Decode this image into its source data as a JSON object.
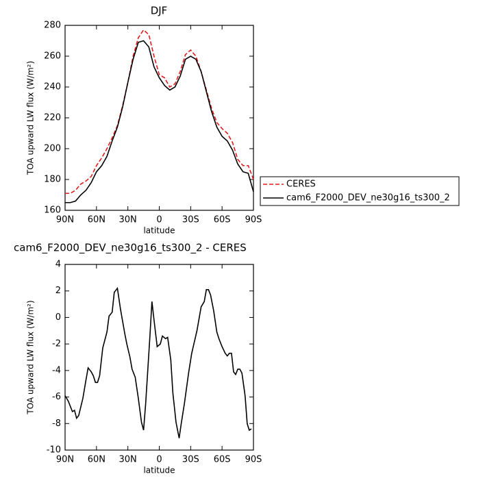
{
  "chart_data": [
    {
      "type": "line",
      "title": "DJF",
      "xlabel": "latitude",
      "ylabel": "TOA upward LW flux (W/m²)",
      "x": [
        90,
        85,
        80,
        75,
        70,
        65,
        60,
        55,
        50,
        45,
        40,
        35,
        30,
        25,
        20,
        15,
        10,
        5,
        0,
        -5,
        -10,
        -15,
        -20,
        -25,
        -30,
        -35,
        -40,
        -45,
        -50,
        -55,
        -60,
        -65,
        -70,
        -75,
        -80,
        -85,
        -90
      ],
      "series": [
        {
          "name": "CERES",
          "color": "#e41a1c",
          "style": "dashed",
          "values": [
            171,
            171,
            173,
            177,
            179,
            182,
            189,
            194,
            200,
            207,
            215,
            228,
            243,
            260,
            272,
            277,
            274,
            260,
            248,
            246,
            240,
            242,
            250,
            261,
            264,
            260,
            250,
            238,
            226,
            217,
            213,
            210,
            204,
            193,
            189,
            189,
            180
          ]
        },
        {
          "name": "cam6_F2000_DEV_ne30g16_ts300_2",
          "color": "#000000",
          "style": "solid",
          "values": [
            165,
            165,
            166,
            170,
            173,
            178,
            185,
            189,
            195,
            205,
            214,
            227,
            243,
            258,
            269,
            270,
            266,
            253,
            246,
            241,
            238,
            240,
            247,
            258,
            260,
            258,
            250,
            237,
            224,
            214,
            208,
            205,
            199,
            190,
            185,
            184,
            172
          ]
        }
      ],
      "xlim": [
        90,
        -90
      ],
      "xticks": [
        {
          "value": 90,
          "label": "90N"
        },
        {
          "value": 60,
          "label": "60N"
        },
        {
          "value": 30,
          "label": "30N"
        },
        0,
        {
          "value": -30,
          "label": "30S"
        },
        {
          "value": -60,
          "label": "60S"
        },
        {
          "value": -90,
          "label": "90S"
        }
      ],
      "ylim": [
        160,
        280
      ],
      "yticks": [
        160,
        180,
        200,
        220,
        240,
        260,
        280
      ],
      "legend": "right"
    },
    {
      "type": "line",
      "title": "cam6_F2000_DEV_ne30g16_ts300_2 - CERES",
      "xlabel": "latitude",
      "ylabel": "TOA upward LW flux (W/m²)",
      "x": [
        90,
        87,
        83,
        81,
        79,
        77,
        73,
        70,
        68,
        65,
        63,
        61,
        59,
        57,
        54,
        50,
        48,
        45,
        43,
        40,
        37,
        33,
        31,
        28,
        26,
        23,
        20,
        17,
        15,
        13,
        9,
        7,
        5,
        2,
        -1,
        -3,
        -6,
        -8,
        -11,
        -13,
        -16,
        -19,
        -21,
        -24,
        -28,
        -31,
        -36,
        -40,
        -43,
        -45,
        -47,
        -49,
        -52,
        -55,
        -57,
        -60,
        -63,
        -65,
        -67,
        -69,
        -71,
        -73,
        -75,
        -77,
        -79,
        -82,
        -84,
        -86,
        -88
      ],
      "series": [
        {
          "color": "#000000",
          "style": "solid",
          "values": [
            -5.9,
            -6.3,
            -7.1,
            -7.0,
            -7.6,
            -7.4,
            -6.1,
            -4.7,
            -3.8,
            -4.1,
            -4.4,
            -4.9,
            -4.9,
            -4.4,
            -2.3,
            -1.1,
            0.1,
            0.4,
            1.9,
            2.2,
            0.6,
            -1.2,
            -2.0,
            -3.0,
            -3.9,
            -4.5,
            -6.1,
            -7.9,
            -8.5,
            -6.5,
            -1.5,
            1.2,
            -0.2,
            -2.2,
            -2.0,
            -1.4,
            -1.6,
            -1.5,
            -3.2,
            -5.7,
            -7.9,
            -9.1,
            -8.0,
            -6.5,
            -4.2,
            -2.7,
            -1.0,
            0.8,
            1.2,
            2.1,
            2.1,
            1.7,
            0.5,
            -1.1,
            -1.6,
            -2.2,
            -2.7,
            -2.9,
            -2.7,
            -2.7,
            -4.1,
            -4.3,
            -3.9,
            -3.9,
            -4.2,
            -5.9,
            -8.0,
            -8.5,
            -8.4
          ]
        }
      ],
      "xlim": [
        90,
        -90
      ],
      "xticks": [
        {
          "value": 90,
          "label": "90N"
        },
        {
          "value": 60,
          "label": "60N"
        },
        {
          "value": 30,
          "label": "30N"
        },
        0,
        {
          "value": -30,
          "label": "30S"
        },
        {
          "value": -60,
          "label": "60S"
        },
        {
          "value": -90,
          "label": "90S"
        }
      ],
      "ylim": [
        -10,
        4
      ],
      "yticks": [
        -10,
        -8,
        -6,
        -4,
        -2,
        0,
        2,
        4
      ]
    }
  ]
}
